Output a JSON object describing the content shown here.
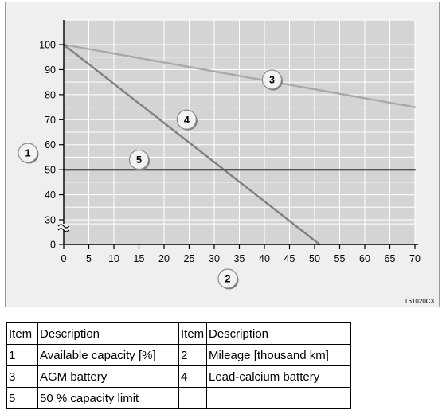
{
  "chart_data": {
    "type": "line",
    "x": [
      0,
      5,
      10,
      15,
      20,
      25,
      30,
      35,
      40,
      45,
      50,
      55,
      60,
      65,
      70
    ],
    "x_ticks": [
      "0",
      "5",
      "10",
      "15",
      "20",
      "25",
      "30",
      "35",
      "40",
      "45",
      "50",
      "55",
      "60",
      "65",
      "70"
    ],
    "y_ticks": [
      "0",
      "30",
      "40",
      "50",
      "60",
      "70",
      "80",
      "90",
      "100"
    ],
    "xlim": [
      0,
      70
    ],
    "ylim": [
      25,
      100
    ],
    "axis_break": "y between 0 and 30",
    "grid": true,
    "series": [
      {
        "marker": "3",
        "color": "#a9a9a9",
        "points": [
          [
            0,
            100
          ],
          [
            70,
            75
          ]
        ]
      },
      {
        "marker": "4",
        "color": "#808080",
        "points": [
          [
            0,
            100
          ],
          [
            51,
            0
          ]
        ]
      },
      {
        "marker": "5",
        "color": "#555555",
        "points": [
          [
            0,
            50
          ],
          [
            70,
            50
          ]
        ]
      }
    ],
    "markers": [
      {
        "label": "1",
        "role": "y-axis"
      },
      {
        "label": "2",
        "role": "x-axis"
      },
      {
        "label": "3",
        "x": 41.5,
        "y": 86
      },
      {
        "label": "4",
        "x": 24.5,
        "y": 70
      },
      {
        "label": "5",
        "x": 15,
        "y": 54
      }
    ],
    "image_code": "T61020C3"
  },
  "legend": {
    "headers": [
      "Item",
      "Description",
      "Item",
      "Description"
    ],
    "rows": [
      [
        "1",
        "Available capacity [%]",
        "2",
        "Mileage [thousand km]"
      ],
      [
        "3",
        "AGM battery",
        "4",
        "Lead-calcium battery"
      ],
      [
        "5",
        "50 % capacity limit",
        "",
        ""
      ]
    ]
  },
  "colors": {
    "plot_bg": "#d4d4d4",
    "figure_bg": "#efefef",
    "grid": "#ffffff"
  }
}
